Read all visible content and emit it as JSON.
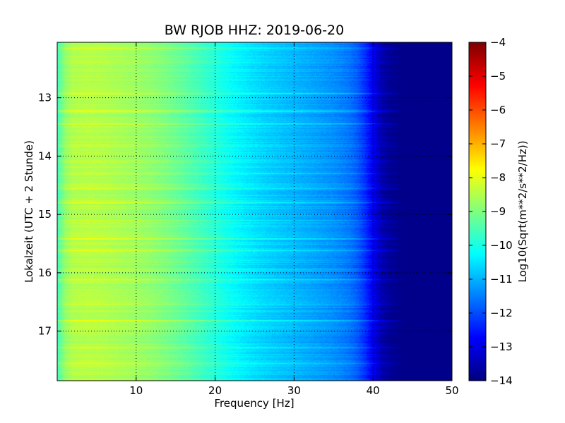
{
  "chart_data": {
    "type": "heatmap",
    "title": "BW RJOB HHZ: 2019-06-20",
    "xlabel": "Frequency [Hz]",
    "ylabel": "Lokalzeit (UTC + 2 Stunde)",
    "xlim": [
      0,
      50
    ],
    "ylim": [
      12.05,
      17.85
    ],
    "y_inverted": true,
    "grid": true,
    "grid_style": "dotted",
    "x_ticks": [
      10,
      20,
      30,
      40,
      50
    ],
    "x_tick_labels": [
      "10",
      "20",
      "30",
      "40",
      "50"
    ],
    "y_ticks": [
      13,
      14,
      15,
      16,
      17
    ],
    "y_tick_labels": [
      "13",
      "14",
      "15",
      "16",
      "17"
    ],
    "colorbar": {
      "label": "Log10(Sqrt(m**2/s**2/Hz))",
      "colormap": "jet",
      "range": [
        -14,
        -4
      ],
      "ticks": [
        -4,
        -5,
        -6,
        -7,
        -8,
        -9,
        -10,
        -11,
        -12,
        -13,
        -14
      ],
      "tick_labels": [
        "−4",
        "−5",
        "−6",
        "−7",
        "−8",
        "−9",
        "−10",
        "−11",
        "−12",
        "−13",
        "−14"
      ]
    },
    "spectrum_profile": {
      "frequency_hz": [
        0,
        1,
        2,
        4,
        6,
        8,
        10,
        12,
        14,
        16,
        18,
        20,
        22,
        24,
        26,
        28,
        30,
        32,
        34,
        36,
        37,
        38,
        39,
        40,
        41,
        42,
        43,
        44,
        46,
        48,
        50
      ],
      "log10_amplitude": [
        -9.6,
        -8.8,
        -8.5,
        -8.45,
        -8.5,
        -8.6,
        -8.7,
        -8.85,
        -9.05,
        -9.3,
        -9.6,
        -9.9,
        -10.2,
        -10.45,
        -10.65,
        -10.8,
        -10.95,
        -11.1,
        -11.25,
        -11.45,
        -11.6,
        -11.85,
        -12.3,
        -12.9,
        -13.5,
        -13.75,
        -13.85,
        -13.9,
        -13.9,
        -13.9,
        -13.9
      ]
    },
    "spectral_line": {
      "frequency_hz_range": [
        34.2,
        35.2
      ],
      "log10_amplitude": -11.4
    },
    "event_bands": [
      {
        "time": 12.15,
        "delta": 0.35
      },
      {
        "time": 12.93,
        "delta": 0.6
      },
      {
        "time": 13.23,
        "delta": 0.55
      },
      {
        "time": 13.45,
        "delta": 0.7
      },
      {
        "time": 14.3,
        "delta": 0.4
      },
      {
        "time": 14.55,
        "delta": 0.45
      },
      {
        "time": 14.8,
        "delta": 0.5
      },
      {
        "time": 15.1,
        "delta": 0.45
      },
      {
        "time": 15.42,
        "delta": 0.6
      },
      {
        "time": 15.62,
        "delta": 0.5
      },
      {
        "time": 15.95,
        "delta": 0.4
      },
      {
        "time": 16.12,
        "delta": 0.45
      },
      {
        "time": 16.55,
        "delta": 0.4
      },
      {
        "time": 16.82,
        "delta": 0.9
      },
      {
        "time": 17.28,
        "delta": 0.45
      },
      {
        "time": 17.55,
        "delta": 0.4
      }
    ]
  }
}
